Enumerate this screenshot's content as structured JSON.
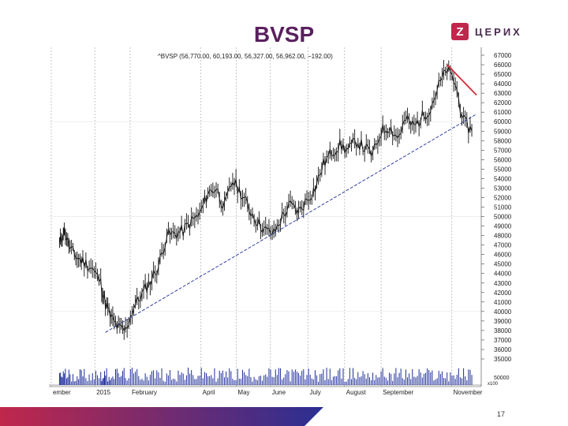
{
  "slide": {
    "title": "BVSP",
    "page_number": "17",
    "logo": {
      "mark": "Z",
      "text": "ЦЕРИХ",
      "icon": "zerich-logo-icon",
      "color": "#c0274b"
    }
  },
  "chart_data": {
    "type": "line",
    "legend_text": "^BVSP (56,770.00, 60,193.00, 56,327.00, 56,962.00, −192.00)",
    "x_tick_labels": [
      "ember",
      "2015",
      "February",
      "April",
      "May",
      "June",
      "July",
      "August",
      "September",
      "November"
    ],
    "y_tick_labels": [
      "67000",
      "66000",
      "65000",
      "64000",
      "63000",
      "62000",
      "61000",
      "60000",
      "59000",
      "58000",
      "57000",
      "56000",
      "55000",
      "54000",
      "53000",
      "52000",
      "51000",
      "50000",
      "49000",
      "48000",
      "47000",
      "46000",
      "45000",
      "44000",
      "43000",
      "42000",
      "41000",
      "40000",
      "39000",
      "38000",
      "37000",
      "36000",
      "35000"
    ],
    "ylim": [
      35000,
      67000
    ],
    "volume_label": "50000",
    "volume_unit_label": "x100",
    "x": [
      "2014-12-01",
      "2014-12-05",
      "2014-12-10",
      "2014-12-16",
      "2014-12-22",
      "2014-12-29",
      "2015-01-05",
      "2015-01-09",
      "2015-01-14",
      "2015-01-20",
      "2015-01-26",
      "2015-02-02",
      "2015-02-09",
      "2015-02-16",
      "2015-02-23",
      "2015-03-02",
      "2015-03-09",
      "2015-03-16",
      "2015-03-23",
      "2015-03-30",
      "2015-04-06",
      "2015-04-13",
      "2015-04-20",
      "2015-04-27",
      "2015-05-04",
      "2015-05-11",
      "2015-05-18",
      "2015-05-25",
      "2015-06-01",
      "2015-06-08",
      "2015-06-15",
      "2015-06-22",
      "2015-06-29",
      "2015-07-06",
      "2015-07-13",
      "2015-07-20",
      "2015-07-27",
      "2015-08-03",
      "2015-08-10",
      "2015-08-17",
      "2015-08-24",
      "2015-08-31",
      "2015-09-07",
      "2015-09-14",
      "2015-09-21",
      "2015-09-28",
      "2015-10-05",
      "2015-10-12",
      "2015-10-19",
      "2015-10-26",
      "2015-11-02",
      "2015-11-09",
      "2015-11-16"
    ],
    "series": [
      {
        "values": [
          47000,
          48600,
          46500,
          45700,
          45200,
          44500,
          43000,
          40800,
          39300,
          38200,
          38000,
          40500,
          41800,
          43200,
          44800,
          48000,
          48200,
          48500,
          49500,
          50200,
          52500,
          53000,
          51000,
          53800,
          52500,
          50800,
          49500,
          48500,
          48200,
          50000,
          51200,
          50500,
          51800,
          53000,
          55500,
          56800,
          57500,
          57000,
          58000,
          57200,
          56500,
          59000,
          59500,
          58300,
          60200,
          59500,
          60500,
          61500,
          63800,
          65500,
          64000,
          60000,
          59000
        ]
      }
    ],
    "annotations": [
      {
        "type": "support-trend-line",
        "color": "#1e2e9a",
        "style": "dashed",
        "from": {
          "x": "2015-01-09",
          "y": 37800
        },
        "to": {
          "x": "2015-11-20",
          "y": 60800
        }
      },
      {
        "type": "resistance-trend-line",
        "color": "#d62b3a",
        "style": "solid",
        "from": {
          "x": "2015-10-26",
          "y": 66000
        },
        "to": {
          "x": "2015-11-20",
          "y": 62800
        }
      }
    ],
    "grid": true,
    "colors": {
      "price": "#111111",
      "volume": "#1e2e9a",
      "grid": "#b8b8b8"
    },
    "band_colors": [
      "#c0274b",
      "#2a2f92"
    ]
  }
}
